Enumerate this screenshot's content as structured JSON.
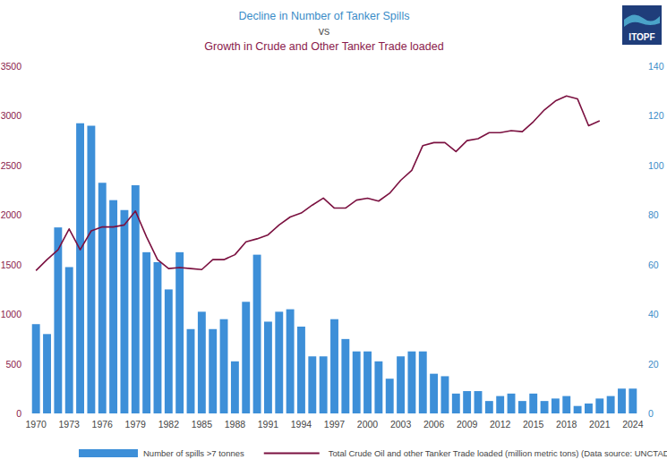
{
  "chart_data": {
    "type": "bar",
    "title": [
      "Decline in Number of Tanker Spills",
      "vs",
      "Growth in Crude and Other Tanker Trade loaded"
    ],
    "logo": "ITOPF",
    "categories": [
      "1970",
      null,
      null,
      "1973",
      null,
      null,
      "1976",
      null,
      null,
      "1979",
      null,
      null,
      "1982",
      null,
      null,
      "1985",
      null,
      null,
      "1988",
      null,
      null,
      "1991",
      null,
      null,
      "1994",
      null,
      null,
      "1997",
      null,
      null,
      "2000",
      null,
      null,
      "2003",
      null,
      null,
      "2006",
      null,
      null,
      "2009",
      null,
      null,
      "2012",
      null,
      null,
      "2015",
      null,
      null,
      "2018",
      null,
      null,
      "2021",
      null,
      null,
      "2024"
    ],
    "series": [
      {
        "name": "Number of spills >7 tonnes",
        "type": "bar",
        "axis": "y2",
        "color": "#3d8fd8",
        "values": [
          36,
          32,
          75,
          59,
          117,
          116,
          93,
          86,
          82,
          92,
          65,
          61,
          50,
          65,
          34,
          41,
          34,
          38,
          21,
          45,
          64,
          37,
          41,
          42,
          35,
          23,
          23,
          38,
          30,
          25,
          25,
          21,
          14,
          23,
          25,
          25,
          16,
          15,
          8,
          9,
          9,
          5,
          7,
          8,
          5,
          8,
          5,
          6,
          7,
          3,
          4,
          6,
          7,
          10,
          10
        ]
      },
      {
        "name": "Total Crude Oil and other Tanker Trade loaded (million metric tons) (Data source: UNCTADStat)",
        "type": "line",
        "color": "#7b1140",
        "values": [
          1440,
          1550,
          1650,
          1860,
          1650,
          1840,
          1880,
          1880,
          1900,
          2040,
          1780,
          1550,
          1460,
          1470,
          1460,
          1450,
          1550,
          1550,
          1600,
          1730,
          1760,
          1800,
          1900,
          1980,
          2020,
          2100,
          2170,
          2070,
          2070,
          2150,
          2170,
          2140,
          2220,
          2350,
          2450,
          2700,
          2730,
          2730,
          2640,
          2750,
          2770,
          2830,
          2830,
          2850,
          2840,
          2940,
          3060,
          3150,
          3200,
          3170,
          2900,
          2950,
          null,
          null,
          null
        ]
      }
    ],
    "ylim": [
      0,
      3500
    ],
    "yticks": [
      0,
      500,
      1000,
      1500,
      2000,
      2500,
      3000,
      3500
    ],
    "y2lim": [
      0,
      140
    ],
    "y2ticks": [
      0,
      20,
      40,
      60,
      80,
      100,
      120,
      140
    ],
    "grid": false,
    "legend": "bottom"
  }
}
